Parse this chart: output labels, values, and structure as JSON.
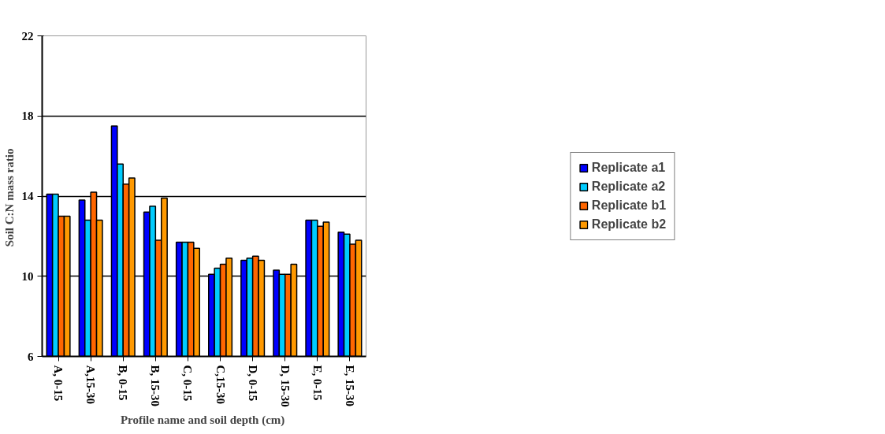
{
  "chart_data": {
    "type": "bar",
    "xlabel": "Profile name and soil depth  (cm)",
    "ylabel": "Soil C:N  mass ratio",
    "categories": [
      "A, 0-15",
      "A,15-30",
      "B, 0-15",
      "B, 15-30",
      "C, 0-15",
      "C,15-30",
      "D, 0-15",
      "D, 15-30",
      "E, 0-15",
      "E, 15-30"
    ],
    "series": [
      {
        "name": "Replicate a1",
        "color": "#0000ff",
        "values": [
          14.1,
          13.8,
          17.5,
          13.2,
          11.7,
          10.1,
          10.8,
          10.3,
          12.8,
          12.2
        ]
      },
      {
        "name": "Replicate a2",
        "color": "#00ccff",
        "values": [
          14.1,
          12.8,
          15.6,
          13.5,
          11.7,
          10.4,
          10.9,
          10.1,
          12.8,
          12.1
        ]
      },
      {
        "name": "Replicate b1",
        "color": "#ff6600",
        "values": [
          13.0,
          14.2,
          14.6,
          11.8,
          11.7,
          10.6,
          11.0,
          10.1,
          12.5,
          11.6
        ]
      },
      {
        "name": "Replicate b2",
        "color": "#ff9900",
        "values": [
          13.0,
          12.8,
          14.9,
          13.9,
          11.4,
          10.9,
          10.8,
          10.6,
          12.7,
          11.8
        ]
      }
    ],
    "ylim": [
      6,
      22
    ],
    "yticks": [
      6,
      10,
      14,
      18,
      22
    ],
    "grid": "y",
    "legend": "right"
  }
}
